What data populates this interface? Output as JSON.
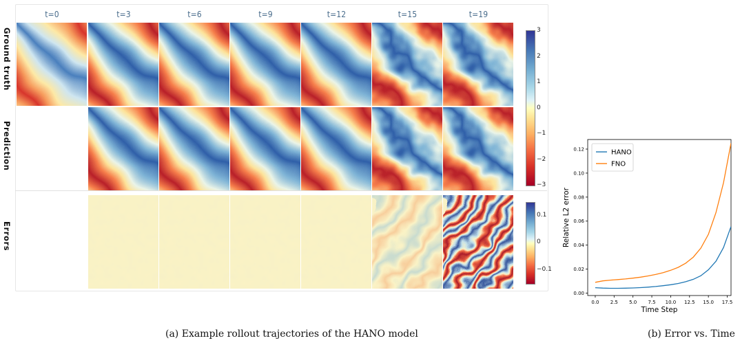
{
  "figure": {
    "caption_a": "(a) Example rollout trajectories of the HANO model",
    "caption_b": "(b) Error vs. Time"
  },
  "grid": {
    "times": [
      "t=0",
      "t=3",
      "t=6",
      "t=9",
      "t=12",
      "t=15",
      "t=19"
    ],
    "row_labels": [
      "Ground truth",
      "Prediction",
      "Errors"
    ],
    "colorbar_field_ticks": [
      "3",
      "2",
      "1",
      "0",
      "−1",
      "−2",
      "−3"
    ],
    "colorbar_error_ticks": [
      "0.1",
      "0",
      "−0.1"
    ],
    "colormap": "RdYlBu (red = negative, blue = positive)"
  },
  "chart_data": {
    "type": "line",
    "xlabel": "Time Step",
    "ylabel": "Relative L2 error",
    "xlim": [
      -1,
      18
    ],
    "ylim": [
      -0.002,
      0.128
    ],
    "xticks": [
      0.0,
      2.5,
      5.0,
      7.5,
      10.0,
      12.5,
      15.0,
      17.5
    ],
    "xtick_labels": [
      "0.0",
      "2.5",
      "5.0",
      "7.5",
      "10.0",
      "12.5",
      "15.0",
      "17.5"
    ],
    "yticks": [
      0.0,
      0.02,
      0.04,
      0.06,
      0.08,
      0.1,
      0.12
    ],
    "ytick_labels": [
      "0.00",
      "0.02",
      "0.04",
      "0.06",
      "0.08",
      "0.10",
      "0.12"
    ],
    "grid": false,
    "legend": "top-left",
    "x": [
      0,
      1,
      2,
      3,
      4,
      5,
      6,
      7,
      8,
      9,
      10,
      11,
      12,
      13,
      14,
      15,
      16,
      17,
      18
    ],
    "series": [
      {
        "name": "HANO",
        "color": "#1f77b4",
        "values": [
          0.0045,
          0.0042,
          0.004,
          0.004,
          0.0041,
          0.0043,
          0.0046,
          0.005,
          0.0055,
          0.0062,
          0.007,
          0.008,
          0.0095,
          0.0115,
          0.0145,
          0.0195,
          0.0265,
          0.038,
          0.0555
        ]
      },
      {
        "name": "FNO",
        "color": "#ff7f0e",
        "values": [
          0.009,
          0.0102,
          0.0108,
          0.0113,
          0.0118,
          0.0125,
          0.0133,
          0.0143,
          0.0155,
          0.017,
          0.019,
          0.0215,
          0.025,
          0.03,
          0.0375,
          0.049,
          0.067,
          0.092,
          0.125
        ]
      }
    ]
  }
}
